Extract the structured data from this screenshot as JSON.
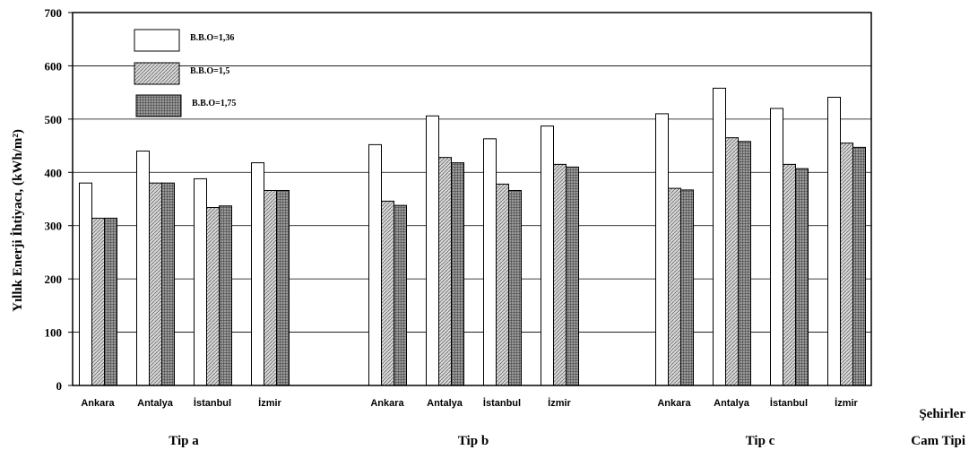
{
  "chart_data": {
    "type": "bar",
    "ylabel": "Yıllık Enerji İhtiyacı, (kWh/m²)",
    "ylim": [
      0,
      700
    ],
    "yticks": [
      0,
      100,
      200,
      300,
      400,
      500,
      600,
      700
    ],
    "grid": true,
    "legend_position": "top-left",
    "x_axis_label_cities": "Şehirler",
    "x_axis_label_groups": "Cam Tipi",
    "groups": [
      {
        "name": "Tip a",
        "categories": [
          "Ankara",
          "Antalya",
          "İstanbul",
          "İzmir"
        ]
      },
      {
        "name": "Tip b",
        "categories": [
          "Ankara",
          "Antalya",
          "İstanbul",
          "İzmir"
        ]
      },
      {
        "name": "Tip c",
        "categories": [
          "Ankara",
          "Antalya",
          "İstanbul",
          "İzmir"
        ]
      }
    ],
    "series": [
      {
        "name": "B.B.O=1,36",
        "pattern": "white",
        "values": [
          380,
          440,
          388,
          418,
          452,
          506,
          463,
          487,
          510,
          558,
          520,
          541
        ]
      },
      {
        "name": "B.B.O=1,5",
        "pattern": "hatched",
        "values": [
          314,
          380,
          334,
          366,
          346,
          428,
          378,
          415,
          370,
          465,
          415,
          455
        ]
      },
      {
        "name": "B.B.O=1,75",
        "pattern": "crosshatch",
        "values": [
          314,
          380,
          337,
          366,
          338,
          418,
          366,
          410,
          367,
          458,
          407,
          447
        ]
      }
    ]
  }
}
